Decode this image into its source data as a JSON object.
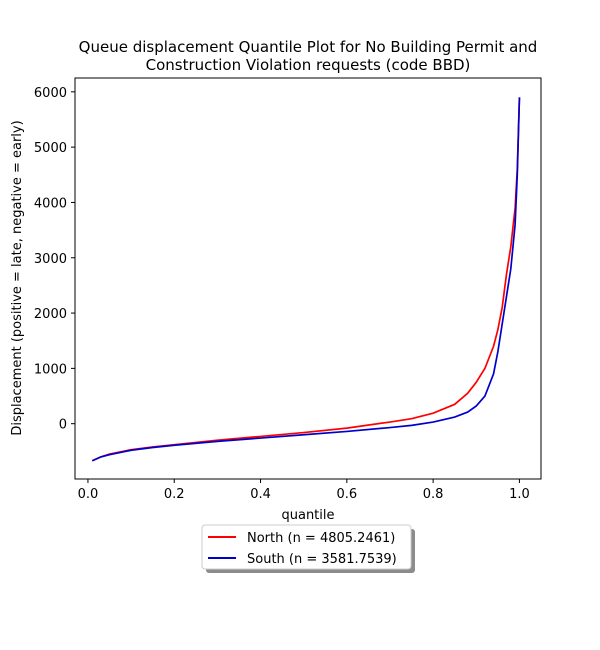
{
  "chart_data": {
    "type": "line",
    "title_line1": "Queue displacement Quantile Plot for No Building Permit and",
    "title_line2": "Construction Violation  requests (code BBD)",
    "xlabel": "quantile",
    "ylabel": "Displacement (positive = late, negative = early)",
    "xlim": [
      -0.03,
      1.05
    ],
    "ylim": [
      -1000,
      6250
    ],
    "xticks": [
      0.0,
      0.2,
      0.4,
      0.6,
      0.8,
      1.0
    ],
    "xtick_labels": [
      "0.0",
      "0.2",
      "0.4",
      "0.6",
      "0.8",
      "1.0"
    ],
    "yticks": [
      0,
      1000,
      2000,
      3000,
      4000,
      5000,
      6000
    ],
    "ytick_labels": [
      "0",
      "1000",
      "2000",
      "3000",
      "4000",
      "5000",
      "6000"
    ],
    "grid": false,
    "legend_position": "below plot, centered",
    "series": [
      {
        "name": "North (n = 4805.2461)",
        "color": "#ff0000",
        "x": [
          0.01,
          0.03,
          0.05,
          0.1,
          0.15,
          0.2,
          0.3,
          0.4,
          0.5,
          0.6,
          0.7,
          0.75,
          0.8,
          0.85,
          0.88,
          0.9,
          0.92,
          0.94,
          0.95,
          0.96,
          0.97,
          0.98,
          0.99,
          0.995,
          1.0
        ],
        "y": [
          -670,
          -600,
          -550,
          -470,
          -420,
          -380,
          -300,
          -230,
          -160,
          -80,
          30,
          90,
          190,
          350,
          550,
          750,
          1000,
          1400,
          1700,
          2100,
          2700,
          3200,
          3900,
          4600,
          5900
        ]
      },
      {
        "name": "South (n = 3581.7539)",
        "color": "#0000cd",
        "x": [
          0.01,
          0.03,
          0.05,
          0.1,
          0.15,
          0.2,
          0.3,
          0.4,
          0.5,
          0.6,
          0.7,
          0.75,
          0.8,
          0.85,
          0.88,
          0.9,
          0.92,
          0.94,
          0.95,
          0.96,
          0.97,
          0.98,
          0.99,
          0.995,
          1.0
        ],
        "y": [
          -670,
          -600,
          -560,
          -480,
          -430,
          -390,
          -320,
          -260,
          -200,
          -140,
          -70,
          -30,
          30,
          120,
          210,
          320,
          500,
          900,
          1300,
          1800,
          2300,
          2800,
          3600,
          4500,
          5900
        ]
      }
    ]
  }
}
